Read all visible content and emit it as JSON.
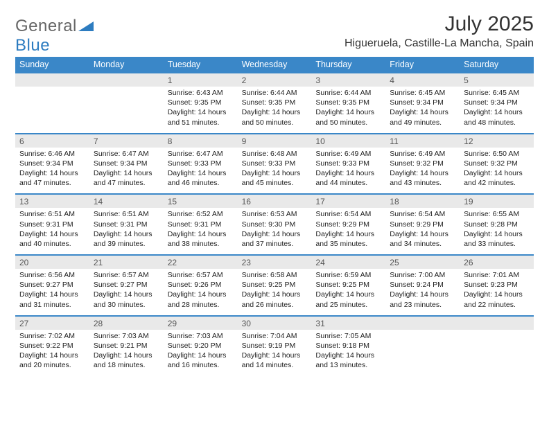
{
  "brand": {
    "part1": "General",
    "part2": "Blue"
  },
  "title": "July 2025",
  "location": "Higueruela, Castille-La Mancha, Spain",
  "colors": {
    "header_bg": "#3a87c8",
    "header_text": "#ffffff",
    "daynum_bg": "#e9e9e9",
    "accent_border": "#3a87c8",
    "body_text": "#222222",
    "page_bg": "#ffffff"
  },
  "weekdays": [
    "Sunday",
    "Monday",
    "Tuesday",
    "Wednesday",
    "Thursday",
    "Friday",
    "Saturday"
  ],
  "weeks": [
    [
      null,
      null,
      {
        "n": "1",
        "sunrise": "6:43 AM",
        "sunset": "9:35 PM",
        "daylight": "14 hours and 51 minutes."
      },
      {
        "n": "2",
        "sunrise": "6:44 AM",
        "sunset": "9:35 PM",
        "daylight": "14 hours and 50 minutes."
      },
      {
        "n": "3",
        "sunrise": "6:44 AM",
        "sunset": "9:35 PM",
        "daylight": "14 hours and 50 minutes."
      },
      {
        "n": "4",
        "sunrise": "6:45 AM",
        "sunset": "9:34 PM",
        "daylight": "14 hours and 49 minutes."
      },
      {
        "n": "5",
        "sunrise": "6:45 AM",
        "sunset": "9:34 PM",
        "daylight": "14 hours and 48 minutes."
      }
    ],
    [
      {
        "n": "6",
        "sunrise": "6:46 AM",
        "sunset": "9:34 PM",
        "daylight": "14 hours and 47 minutes."
      },
      {
        "n": "7",
        "sunrise": "6:47 AM",
        "sunset": "9:34 PM",
        "daylight": "14 hours and 47 minutes."
      },
      {
        "n": "8",
        "sunrise": "6:47 AM",
        "sunset": "9:33 PM",
        "daylight": "14 hours and 46 minutes."
      },
      {
        "n": "9",
        "sunrise": "6:48 AM",
        "sunset": "9:33 PM",
        "daylight": "14 hours and 45 minutes."
      },
      {
        "n": "10",
        "sunrise": "6:49 AM",
        "sunset": "9:33 PM",
        "daylight": "14 hours and 44 minutes."
      },
      {
        "n": "11",
        "sunrise": "6:49 AM",
        "sunset": "9:32 PM",
        "daylight": "14 hours and 43 minutes."
      },
      {
        "n": "12",
        "sunrise": "6:50 AM",
        "sunset": "9:32 PM",
        "daylight": "14 hours and 42 minutes."
      }
    ],
    [
      {
        "n": "13",
        "sunrise": "6:51 AM",
        "sunset": "9:31 PM",
        "daylight": "14 hours and 40 minutes."
      },
      {
        "n": "14",
        "sunrise": "6:51 AM",
        "sunset": "9:31 PM",
        "daylight": "14 hours and 39 minutes."
      },
      {
        "n": "15",
        "sunrise": "6:52 AM",
        "sunset": "9:31 PM",
        "daylight": "14 hours and 38 minutes."
      },
      {
        "n": "16",
        "sunrise": "6:53 AM",
        "sunset": "9:30 PM",
        "daylight": "14 hours and 37 minutes."
      },
      {
        "n": "17",
        "sunrise": "6:54 AM",
        "sunset": "9:29 PM",
        "daylight": "14 hours and 35 minutes."
      },
      {
        "n": "18",
        "sunrise": "6:54 AM",
        "sunset": "9:29 PM",
        "daylight": "14 hours and 34 minutes."
      },
      {
        "n": "19",
        "sunrise": "6:55 AM",
        "sunset": "9:28 PM",
        "daylight": "14 hours and 33 minutes."
      }
    ],
    [
      {
        "n": "20",
        "sunrise": "6:56 AM",
        "sunset": "9:27 PM",
        "daylight": "14 hours and 31 minutes."
      },
      {
        "n": "21",
        "sunrise": "6:57 AM",
        "sunset": "9:27 PM",
        "daylight": "14 hours and 30 minutes."
      },
      {
        "n": "22",
        "sunrise": "6:57 AM",
        "sunset": "9:26 PM",
        "daylight": "14 hours and 28 minutes."
      },
      {
        "n": "23",
        "sunrise": "6:58 AM",
        "sunset": "9:25 PM",
        "daylight": "14 hours and 26 minutes."
      },
      {
        "n": "24",
        "sunrise": "6:59 AM",
        "sunset": "9:25 PM",
        "daylight": "14 hours and 25 minutes."
      },
      {
        "n": "25",
        "sunrise": "7:00 AM",
        "sunset": "9:24 PM",
        "daylight": "14 hours and 23 minutes."
      },
      {
        "n": "26",
        "sunrise": "7:01 AM",
        "sunset": "9:23 PM",
        "daylight": "14 hours and 22 minutes."
      }
    ],
    [
      {
        "n": "27",
        "sunrise": "7:02 AM",
        "sunset": "9:22 PM",
        "daylight": "14 hours and 20 minutes."
      },
      {
        "n": "28",
        "sunrise": "7:03 AM",
        "sunset": "9:21 PM",
        "daylight": "14 hours and 18 minutes."
      },
      {
        "n": "29",
        "sunrise": "7:03 AM",
        "sunset": "9:20 PM",
        "daylight": "14 hours and 16 minutes."
      },
      {
        "n": "30",
        "sunrise": "7:04 AM",
        "sunset": "9:19 PM",
        "daylight": "14 hours and 14 minutes."
      },
      {
        "n": "31",
        "sunrise": "7:05 AM",
        "sunset": "9:18 PM",
        "daylight": "14 hours and 13 minutes."
      },
      null,
      null
    ]
  ],
  "labels": {
    "sunrise": "Sunrise:",
    "sunset": "Sunset:",
    "daylight": "Daylight:"
  }
}
